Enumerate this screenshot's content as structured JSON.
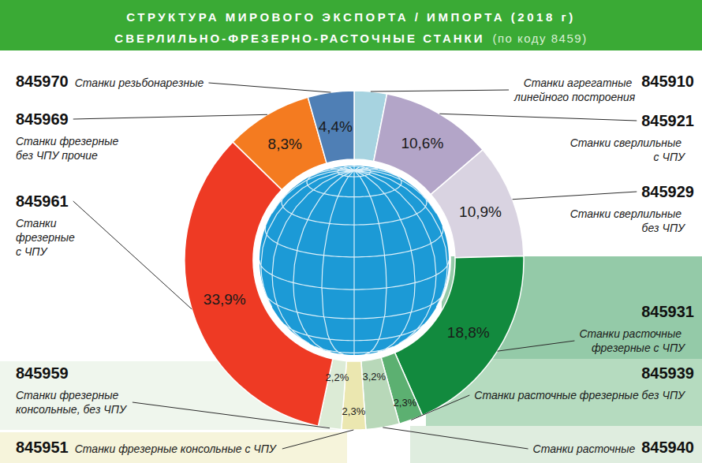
{
  "chart_data": {
    "type": "pie",
    "title": "СТРУКТУРА МИРОВОГО ЭКСПОРТА / ИМПОРТА (2018 г)",
    "subtitle": "СВЕРЛИЛЬНО-ФРЕЗЕРНО-РАСТОЧНЫЕ СТАНКИ",
    "subtitle_note": "(по коду 8459)",
    "codes": [
      "845910",
      "845921",
      "845929",
      "845931",
      "845939",
      "845940",
      "845951",
      "845959",
      "845961",
      "845969",
      "845970"
    ],
    "categories": [
      "Станки агрегатные линейного построения",
      "Станки сверлильные с ЧПУ",
      "Станки сверлильные без ЧПУ",
      "Станки расточные фрезерные с ЧПУ",
      "Станки расточные фрезерные без ЧПУ",
      "Станки расточные",
      "Станки фрезерные консольные с ЧПУ",
      "Станки фрезерные консольные, без ЧПУ",
      "Станки фрезерные с ЧПУ",
      "Станки фрезерные без ЧПУ прочие",
      "Станки резьбонарезные"
    ],
    "values": [
      3.1,
      10.6,
      10.9,
      18.8,
      2.3,
      3.2,
      2.3,
      2.2,
      33.9,
      8.3,
      4.4
    ],
    "value_labels": [
      null,
      "10,6%",
      "10,9%",
      "18,8%",
      "2,3%",
      "3,2%",
      "2,3%",
      "2,2%",
      "33,9%",
      "8,3%",
      "4,4%"
    ],
    "colors": [
      "#a7d3e0",
      "#b3a5c8",
      "#d9d3e1",
      "#128a3e",
      "#5cb071",
      "#b8d8b9",
      "#ebe7b0",
      "#dcebd6",
      "#ee3a24",
      "#f47b20",
      "#4f7fb5"
    ],
    "data_labels": true
  }
}
